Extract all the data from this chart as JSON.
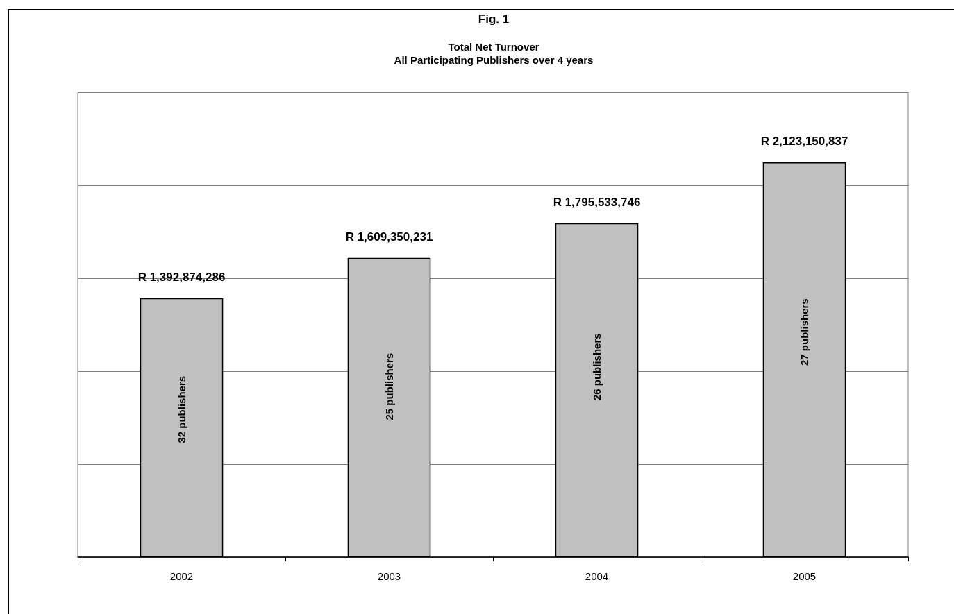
{
  "chart_data": {
    "type": "bar",
    "title": "Fig. 1",
    "subtitle": "Total Net Turnover\nAll Participating Publishers over 4 years",
    "categories": [
      "2002",
      "2003",
      "2004",
      "2005"
    ],
    "values": [
      1392874286,
      1609350231,
      1795533746,
      2123150837
    ],
    "value_labels": [
      "R 1,392,874,286",
      "R 1,609,350,231",
      "R 1,795,533,746",
      "R 2,123,150,837"
    ],
    "color": "#c0c0c0",
    "ylim": [
      0,
      2500000000
    ],
    "yticks": [
      {
        "value": 0,
        "label": null
      },
      {
        "value": 500000000,
        "label": null
      },
      {
        "value": 1000000000,
        "label": null
      },
      {
        "value": 1500000000,
        "label": null
      },
      {
        "value": 2000000000,
        "label": null
      },
      {
        "value": 2500000000,
        "label": null
      }
    ],
    "tick_labels": "x",
    "grid": "y",
    "annotations": [
      "32 publishers",
      "25 publishers",
      "26 publishers",
      "27 publishers"
    ]
  }
}
